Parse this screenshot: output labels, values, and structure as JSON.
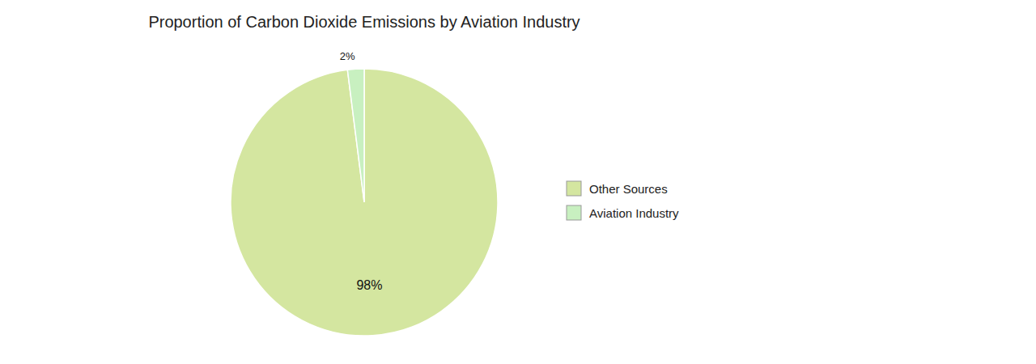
{
  "chart_data": {
    "type": "pie",
    "title": "Proportion of Carbon Dioxide Emissions by Aviation Industry",
    "categories": [
      "Other Sources",
      "Aviation Industry"
    ],
    "values": [
      98,
      2
    ],
    "value_labels": [
      "98%",
      "2%"
    ],
    "colors": [
      "#d4e6a0",
      "#c8f0c0"
    ],
    "data_labels": true,
    "legend": "right"
  }
}
